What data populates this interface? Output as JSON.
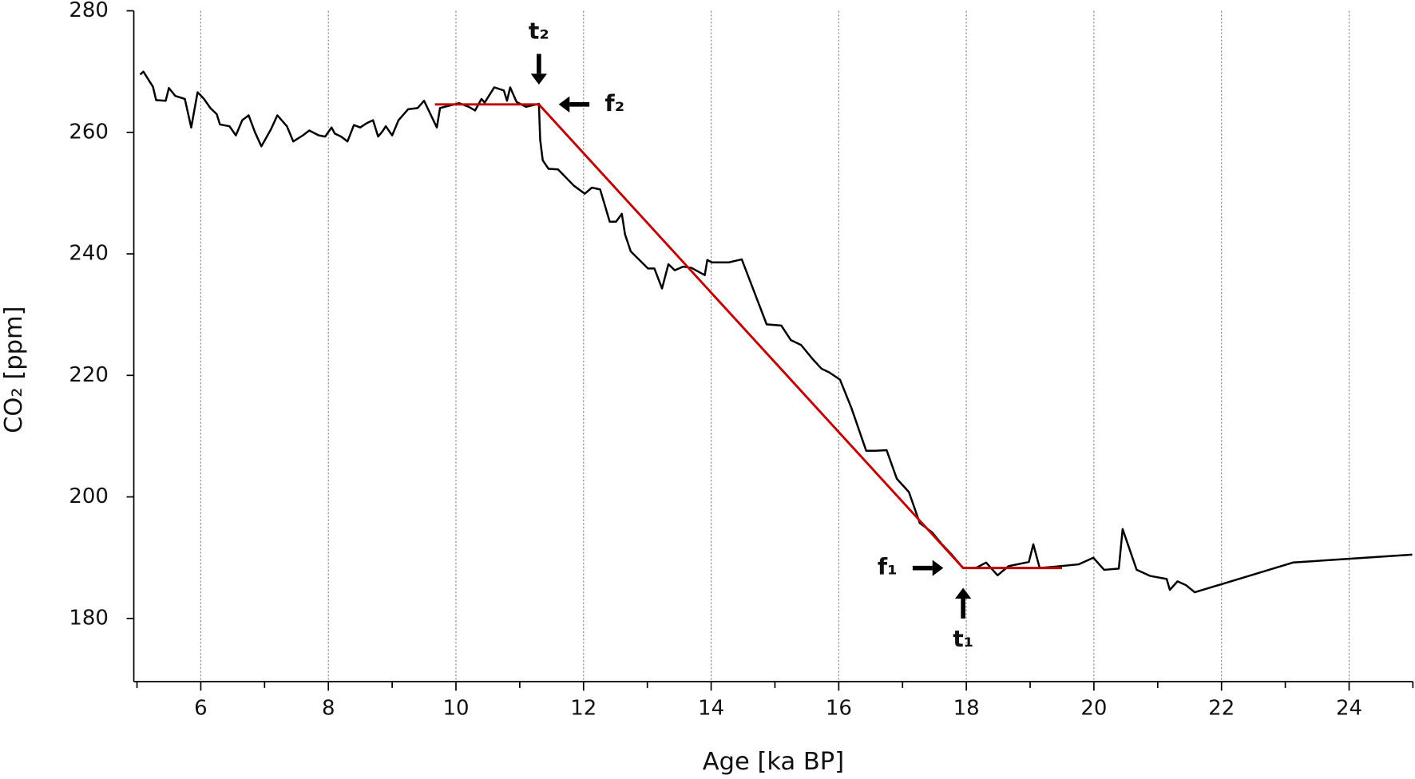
{
  "chart_data": {
    "type": "line",
    "xlabel": "Age [ka BP]",
    "ylabel": "CO₂ [ppm]",
    "xlim": [
      4.95,
      25
    ],
    "ylim": [
      169.6,
      280
    ],
    "xticks": [
      6,
      8,
      10,
      12,
      14,
      16,
      18,
      20,
      22,
      24
    ],
    "xminorticks": [
      5,
      7,
      9,
      11,
      13,
      15,
      17,
      19,
      21,
      23,
      25
    ],
    "yticks": [
      180,
      200,
      220,
      240,
      260,
      280
    ],
    "grid": "x",
    "series": [
      {
        "color": "#000000",
        "x": [
          5.05,
          5.1,
          5.25,
          5.3,
          5.45,
          5.5,
          5.6,
          5.75,
          5.85,
          5.95,
          6.05,
          6.15,
          6.25,
          6.3,
          6.45,
          6.55,
          6.65,
          6.75,
          6.85,
          6.95,
          7.1,
          7.2,
          7.35,
          7.45,
          7.6,
          7.7,
          7.85,
          7.95,
          8.05,
          8.1,
          8.2,
          8.3,
          8.4,
          8.5,
          8.6,
          8.7,
          8.78,
          8.85,
          8.9,
          9.0,
          9.1,
          9.25,
          9.4,
          9.5,
          9.6,
          9.7,
          9.75,
          9.9,
          10.05,
          10.2,
          10.3,
          10.4,
          10.45,
          10.6,
          10.75,
          10.8,
          10.85,
          10.95,
          11.1,
          11.3,
          11.32,
          11.36,
          11.45,
          11.6,
          11.85,
          12.02,
          12.13,
          12.26,
          12.41,
          12.51,
          12.6,
          12.65,
          12.74,
          13.01,
          13.11,
          13.23,
          13.33,
          13.43,
          13.56,
          13.69,
          13.9,
          13.94,
          14.01,
          14.28,
          14.48,
          14.87,
          15.1,
          15.25,
          15.41,
          15.59,
          15.73,
          15.85,
          16.02,
          16.2,
          16.43,
          16.58,
          16.75,
          16.91,
          17.1,
          17.27,
          17.46,
          17.61,
          17.78,
          17.95,
          18.15,
          18.31,
          18.49,
          18.66,
          18.98,
          19.05,
          19.15,
          19.37,
          19.76,
          19.99,
          20.16,
          20.39,
          20.45,
          20.67,
          20.88,
          21.14,
          21.19,
          21.31,
          21.44,
          21.58,
          23.12,
          24.99
        ],
        "values": [
          269.5,
          270,
          267.5,
          265.3,
          265.2,
          267.3,
          266,
          265.5,
          260.8,
          266.6,
          265.5,
          264,
          263,
          261.3,
          261,
          259.5,
          262,
          262.8,
          260,
          257.7,
          260.5,
          262.8,
          261,
          258.5,
          259.5,
          260.3,
          259.5,
          259.3,
          260.8,
          259.8,
          259.3,
          258.5,
          261.2,
          260.8,
          261.5,
          262,
          259.3,
          260.2,
          261,
          259.5,
          262,
          263.8,
          264,
          265.2,
          263,
          260.8,
          264,
          264.4,
          264.8,
          264.2,
          263.6,
          265.5,
          264.9,
          267.4,
          266.9,
          265.2,
          267.4,
          265,
          264.2,
          264.7,
          258.8,
          255.4,
          254,
          253.9,
          251.2,
          249.9,
          250.9,
          250.6,
          245.3,
          245.3,
          246.6,
          243.2,
          240.4,
          237.6,
          237.6,
          234.3,
          238.3,
          237.3,
          237.9,
          237.7,
          236.5,
          239,
          238.6,
          238.6,
          239.1,
          228.4,
          228.2,
          225.8,
          225,
          222.7,
          221.1,
          220.5,
          219.3,
          214.6,
          207.6,
          207.6,
          207.7,
          203,
          200.8,
          195.7,
          194.2,
          192.3,
          190.4,
          188.3,
          188.3,
          189.2,
          187.1,
          188.6,
          189.3,
          192.2,
          188.3,
          188.5,
          188.9,
          190,
          188,
          188.2,
          194.7,
          188,
          187,
          186.5,
          184.7,
          186.1,
          185.5,
          184.3,
          189.2,
          190.5
        ]
      },
      {
        "color": "#c00000",
        "x": [
          9.67,
          11.3,
          17.95,
          19.5
        ],
        "values": [
          264.6,
          264.6,
          188.3,
          188.3
        ]
      }
    ],
    "annotations": [
      {
        "text": "t₂",
        "x": 11.3,
        "y": 264.6,
        "arrow": "down"
      },
      {
        "text": "f₂",
        "x": 11.3,
        "y": 264.6,
        "arrow": "left"
      },
      {
        "text": "f₁",
        "x": 17.95,
        "y": 188.3,
        "arrow": "right"
      },
      {
        "text": "t₁",
        "x": 17.95,
        "y": 188.3,
        "arrow": "up"
      }
    ]
  }
}
